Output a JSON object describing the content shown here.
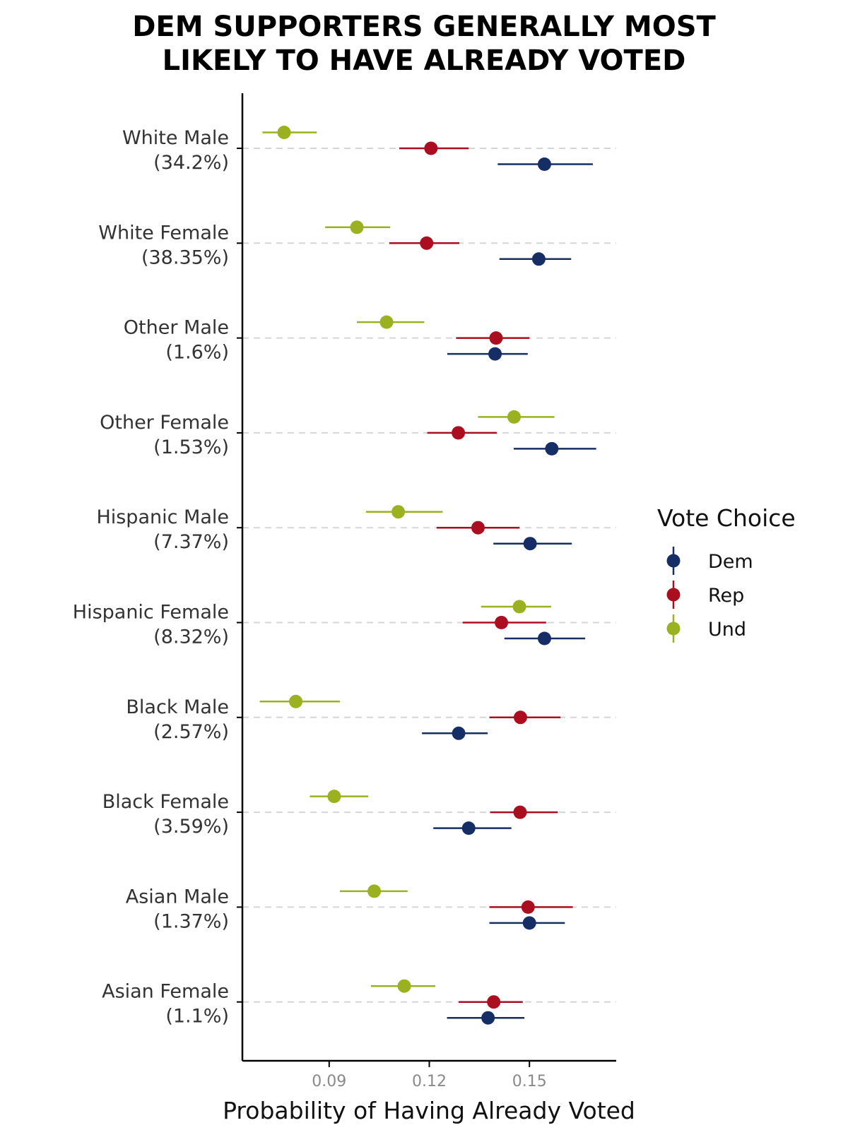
{
  "chart_data": {
    "type": "scatter",
    "title": "DEM SUPPORTERS GENERALLY MOST LIKELY TO HAVE ALREADY VOTED",
    "title_lines": [
      "DEM SUPPORTERS GENERALLY MOST",
      "LIKELY TO HAVE ALREADY VOTED"
    ],
    "xlabel": "Probability of Having Already Voted",
    "ylabel": "",
    "xlim": [
      0.064,
      0.176
    ],
    "x_ticks": [
      0.09,
      0.12,
      0.15
    ],
    "x_tick_labels": [
      "0.09",
      "0.12",
      "0.15"
    ],
    "grid": "dashed horizontal lines at categories",
    "legend": {
      "title": "Vote Choice",
      "placement": "right",
      "entries": [
        "Dem",
        "Rep",
        "Und"
      ]
    },
    "categories": [
      {
        "line1": "White Male",
        "line2": "(34.2%)"
      },
      {
        "line1": "White Female",
        "line2": "(38.35%)"
      },
      {
        "line1": "Other Male",
        "line2": "(1.6%)"
      },
      {
        "line1": "Other Female",
        "line2": "(1.53%)"
      },
      {
        "line1": "Hispanic Male",
        "line2": "(7.37%)"
      },
      {
        "line1": "Hispanic Female",
        "line2": "(8.32%)"
      },
      {
        "line1": "Black Male",
        "line2": "(2.57%)"
      },
      {
        "line1": "Black Female",
        "line2": "(3.59%)"
      },
      {
        "line1": "Asian Male",
        "line2": "(1.37%)"
      },
      {
        "line1": "Asian Female",
        "line2": "(1.1%)"
      }
    ],
    "series": [
      {
        "name": "Dem",
        "color": "#152f66",
        "estimate": [
          0.1545,
          0.1528,
          0.1397,
          0.1567,
          0.1502,
          0.1545,
          0.1288,
          0.1318,
          0.15,
          0.1376
        ],
        "lower": [
          0.1405,
          0.141,
          0.1254,
          0.1453,
          0.1392,
          0.1425,
          0.1178,
          0.1212,
          0.138,
          0.1253
        ],
        "upper": [
          0.169,
          0.1625,
          0.1495,
          0.17,
          0.1627,
          0.1667,
          0.1375,
          0.1446,
          0.1606,
          0.1485
        ]
      },
      {
        "name": "Rep",
        "color": "#ab0e1f",
        "estimate": [
          0.1205,
          0.1192,
          0.14,
          0.1287,
          0.1346,
          0.1416,
          0.1473,
          0.1472,
          0.1496,
          0.1393
        ],
        "lower": [
          0.111,
          0.108,
          0.128,
          0.1194,
          0.1222,
          0.13,
          0.138,
          0.1382,
          0.138,
          0.1288
        ],
        "upper": [
          0.1318,
          0.129,
          0.15,
          0.1402,
          0.147,
          0.155,
          0.1593,
          0.1585,
          0.163,
          0.148
        ]
      },
      {
        "name": "Und",
        "color": "#9bb11f",
        "estimate": [
          0.0765,
          0.0983,
          0.1072,
          0.1454,
          0.1107,
          0.147,
          0.08,
          0.0915,
          0.1035,
          0.1125
        ],
        "lower": [
          0.07,
          0.0888,
          0.0983,
          0.1346,
          0.101,
          0.1355,
          0.0692,
          0.0842,
          0.0932,
          0.1025
        ],
        "upper": [
          0.0863,
          0.1083,
          0.1185,
          0.1575,
          0.124,
          0.1565,
          0.0932,
          0.1017,
          0.1135,
          0.1218
        ]
      }
    ]
  }
}
